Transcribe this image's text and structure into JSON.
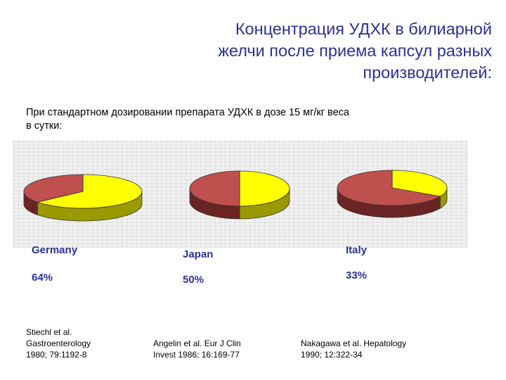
{
  "title": {
    "line1": "Концентрация УДХК в билиарной",
    "line2": "желчи после приема капсул разных",
    "line3": "производителей:"
  },
  "intro": {
    "line1": "При стандартном дозировании препарата УДХК в дозе 15 мг/кг веса",
    "line2": "в сутки:"
  },
  "colors": {
    "title": "#2d3192",
    "yellow": "#ffff00",
    "red": "#c0504d",
    "red_dark": "#6b2424"
  },
  "chart_data": [
    {
      "type": "pie",
      "label": "Germany",
      "value_label": "64%",
      "values": [
        64,
        36
      ]
    },
    {
      "type": "pie",
      "label": "Japan",
      "value_label": "50%",
      "values": [
        50,
        50
      ]
    },
    {
      "type": "pie",
      "label": "Italy",
      "value_label": "33%",
      "values": [
        33,
        67
      ]
    }
  ],
  "references": [
    {
      "line1": "Stiechl et al.",
      "line2": "Gastroenterology",
      "line3": "1980; 79:1192-8"
    },
    {
      "line1": "Angelin et al. Eur J Clin",
      "line2": "Invest 1986; 16:169-77"
    },
    {
      "line1": "Nakagawa et al. Hepatology",
      "line2": "1990; 12:322-34"
    }
  ]
}
